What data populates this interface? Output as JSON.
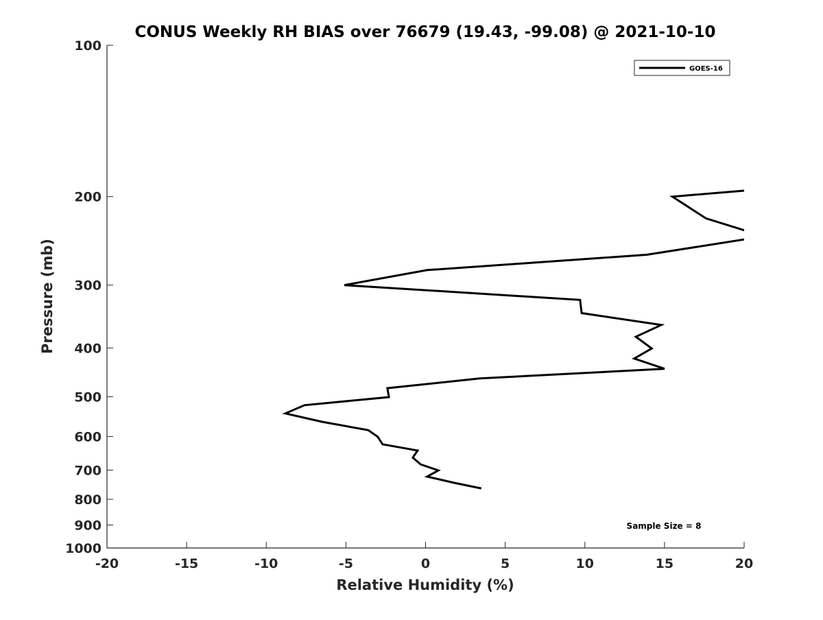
{
  "chart_data": {
    "type": "line",
    "title": "CONUS Weekly RH BIAS over 76679 (19.43, -99.08) @ 2021-10-10",
    "xlabel": "Relative Humidity (%)",
    "ylabel": "Pressure (mb)",
    "xlim": [
      -20,
      20
    ],
    "ylim": [
      100,
      1000
    ],
    "yscale": "log",
    "yreversed": true,
    "xticks": [
      "-20",
      "-15",
      "-10",
      "-5",
      "0",
      "5",
      "10",
      "15",
      "20"
    ],
    "yticks": [
      "100",
      "200",
      "300",
      "400",
      "500",
      "600",
      "700",
      "800",
      "900",
      "1000"
    ],
    "grid": false,
    "legend_position": "top-right",
    "annotation": "Sample Size = 8",
    "color": "#000000",
    "series": [
      {
        "name": "GOES-16",
        "x": [
          20.5,
          15.5,
          17.6,
          20.5,
          20.5,
          13.9,
          0.1,
          -5.1,
          9.7,
          9.8,
          14.8,
          13.2,
          14.2,
          13.1,
          15.0,
          3.4,
          -2.4,
          -2.3,
          -7.6,
          -8.8,
          -6.5,
          -3.6,
          -3.0,
          -2.7,
          -0.5,
          -0.8,
          -0.3,
          0.8,
          0.1,
          1.8,
          3.5
        ],
        "y": [
          194,
          200,
          221,
          236,
          242,
          261,
          280,
          300,
          321,
          341,
          360,
          380,
          401,
          420,
          440,
          460,
          481,
          501,
          520,
          540,
          561,
          583,
          601,
          622,
          640,
          661,
          682,
          701,
          721,
          742,
          761
        ]
      }
    ]
  }
}
